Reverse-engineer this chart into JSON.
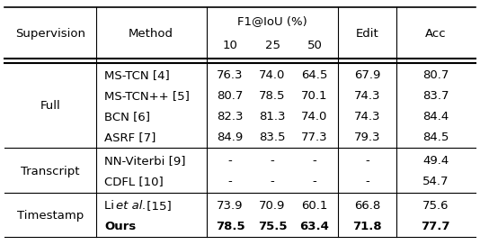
{
  "headers": {
    "col1": "Supervision",
    "col2": "Method",
    "f1_header": "F1@IoU (%)",
    "f1_sub": [
      "10",
      "25",
      "50"
    ],
    "col6": "Edit",
    "col7": "Acc"
  },
  "rows": [
    {
      "method": "MS-TCN [4]",
      "f10": "76.3",
      "f25": "74.0",
      "f50": "64.5",
      "edit": "67.9",
      "acc": "80.7",
      "bold": false,
      "italic_method": false
    },
    {
      "method": "MS-TCN++ [5]",
      "f10": "80.7",
      "f25": "78.5",
      "f50": "70.1",
      "edit": "74.3",
      "acc": "83.7",
      "bold": false,
      "italic_method": false
    },
    {
      "method": "BCN [6]",
      "f10": "82.3",
      "f25": "81.3",
      "f50": "74.0",
      "edit": "74.3",
      "acc": "84.4",
      "bold": false,
      "italic_method": false
    },
    {
      "method": "ASRF [7]",
      "f10": "84.9",
      "f25": "83.5",
      "f50": "77.3",
      "edit": "79.3",
      "acc": "84.5",
      "bold": false,
      "italic_method": false
    },
    {
      "method": "NN-Viterbi [9]",
      "f10": "-",
      "f25": "-",
      "f50": "-",
      "edit": "-",
      "acc": "49.4",
      "bold": false,
      "italic_method": false
    },
    {
      "method": "CDFL [10]",
      "f10": "-",
      "f25": "-",
      "f50": "-",
      "edit": "-",
      "acc": "54.7",
      "bold": false,
      "italic_method": false
    },
    {
      "method": "Li et al. [15]",
      "f10": "73.9",
      "f25": "70.9",
      "f50": "60.1",
      "edit": "66.8",
      "acc": "75.6",
      "bold": false,
      "italic_method": true
    },
    {
      "method": "Ours",
      "f10": "78.5",
      "f25": "75.5",
      "f50": "63.4",
      "edit": "71.8",
      "acc": "77.7",
      "bold": true,
      "italic_method": false
    }
  ],
  "group_spans": [
    {
      "label": "Full",
      "start": 0,
      "end": 3
    },
    {
      "label": "Transcript",
      "start": 4,
      "end": 5
    },
    {
      "label": "Timestamp",
      "start": 6,
      "end": 7
    }
  ],
  "bg_color": "#ffffff",
  "text_color": "#000000",
  "line_color": "#000000",
  "font_size": 9.5
}
